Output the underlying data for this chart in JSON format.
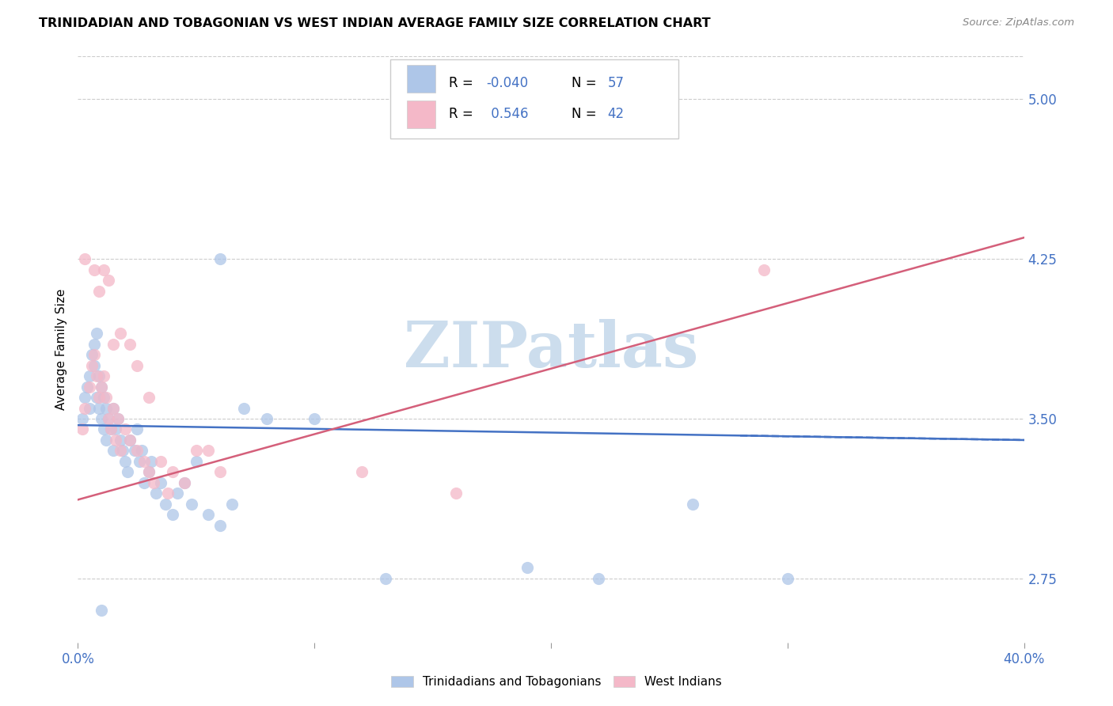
{
  "title": "TRINIDADIAN AND TOBAGONIAN VS WEST INDIAN AVERAGE FAMILY SIZE CORRELATION CHART",
  "source": "Source: ZipAtlas.com",
  "ylabel": "Average Family Size",
  "yticks": [
    2.75,
    3.5,
    4.25,
    5.0
  ],
  "xlim": [
    0.0,
    0.4
  ],
  "ylim": [
    2.45,
    5.2
  ],
  "legend_label1": "Trinidadians and Tobagonians",
  "legend_label2": "West Indians",
  "r1": "-0.040",
  "n1": "57",
  "r2": "0.546",
  "n2": "42",
  "color_blue_fill": "#aec6e8",
  "color_pink_fill": "#f4b8c8",
  "color_line_blue": "#4472c4",
  "color_line_pink": "#d45f7a",
  "color_axis_blue": "#4472c4",
  "watermark_color": "#ccdded",
  "blue_line_x": [
    0.0,
    0.4
  ],
  "blue_line_y": [
    3.47,
    3.4
  ],
  "pink_line_x": [
    0.0,
    0.4
  ],
  "pink_line_y": [
    3.12,
    4.35
  ],
  "blue_x": [
    0.002,
    0.003,
    0.004,
    0.005,
    0.005,
    0.006,
    0.007,
    0.007,
    0.008,
    0.008,
    0.009,
    0.009,
    0.01,
    0.01,
    0.011,
    0.011,
    0.012,
    0.012,
    0.013,
    0.014,
    0.015,
    0.015,
    0.016,
    0.017,
    0.018,
    0.019,
    0.02,
    0.021,
    0.022,
    0.024,
    0.025,
    0.026,
    0.027,
    0.028,
    0.03,
    0.031,
    0.033,
    0.035,
    0.037,
    0.04,
    0.042,
    0.045,
    0.048,
    0.05,
    0.055,
    0.06,
    0.065,
    0.07,
    0.08,
    0.1,
    0.06,
    0.13,
    0.19,
    0.22,
    0.26,
    0.3,
    0.01
  ],
  "blue_y": [
    3.5,
    3.6,
    3.65,
    3.7,
    3.55,
    3.8,
    3.85,
    3.75,
    3.9,
    3.6,
    3.7,
    3.55,
    3.65,
    3.5,
    3.6,
    3.45,
    3.55,
    3.4,
    3.5,
    3.45,
    3.55,
    3.35,
    3.45,
    3.5,
    3.4,
    3.35,
    3.3,
    3.25,
    3.4,
    3.35,
    3.45,
    3.3,
    3.35,
    3.2,
    3.25,
    3.3,
    3.15,
    3.2,
    3.1,
    3.05,
    3.15,
    3.2,
    3.1,
    3.3,
    3.05,
    3.0,
    3.1,
    3.55,
    3.5,
    3.5,
    4.25,
    2.75,
    2.8,
    2.75,
    3.1,
    2.75,
    2.6
  ],
  "pink_x": [
    0.002,
    0.003,
    0.005,
    0.006,
    0.007,
    0.008,
    0.009,
    0.01,
    0.011,
    0.012,
    0.013,
    0.014,
    0.015,
    0.016,
    0.017,
    0.018,
    0.02,
    0.022,
    0.025,
    0.028,
    0.03,
    0.032,
    0.035,
    0.038,
    0.04,
    0.045,
    0.05,
    0.06,
    0.007,
    0.009,
    0.011,
    0.013,
    0.015,
    0.018,
    0.022,
    0.025,
    0.03,
    0.055,
    0.12,
    0.16,
    0.29,
    0.003
  ],
  "pink_y": [
    3.45,
    3.55,
    3.65,
    3.75,
    3.8,
    3.7,
    3.6,
    3.65,
    3.7,
    3.6,
    3.5,
    3.45,
    3.55,
    3.4,
    3.5,
    3.35,
    3.45,
    3.4,
    3.35,
    3.3,
    3.25,
    3.2,
    3.3,
    3.15,
    3.25,
    3.2,
    3.35,
    3.25,
    4.2,
    4.1,
    4.2,
    4.15,
    3.85,
    3.9,
    3.85,
    3.75,
    3.6,
    3.35,
    3.25,
    3.15,
    4.2,
    4.25
  ]
}
